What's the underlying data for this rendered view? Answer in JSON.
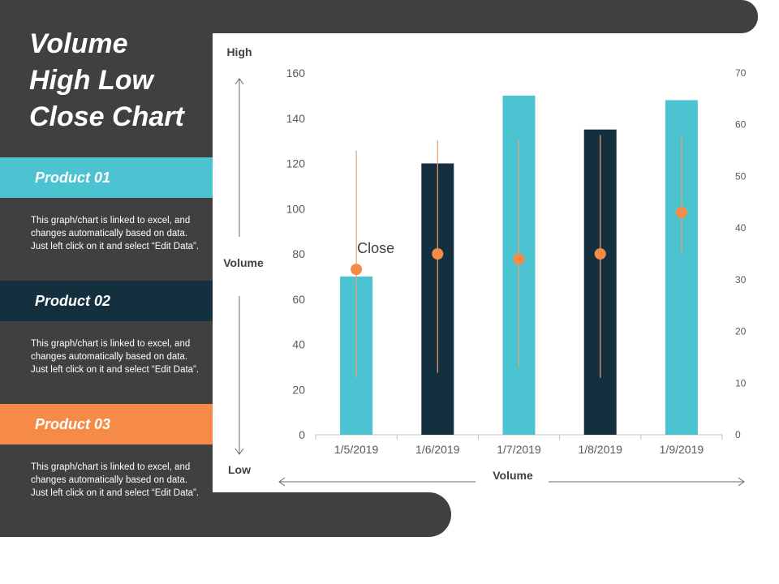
{
  "slide": {
    "title": "Volume\nHigh Low\nClose Chart",
    "products": [
      {
        "label": "Product 01",
        "color": "#4CC3D0",
        "description": "This graph/chart is linked to excel, and changes automatically based on data. Just left click on it and select “Edit Data”."
      },
      {
        "label": "Product 02",
        "color": "#14303F",
        "description": "This graph/chart is linked to excel, and changes automatically based on data. Just left click on it and select “Edit Data”."
      },
      {
        "label": "Product 03",
        "color": "#F58B47",
        "description": "This graph/chart is linked to excel, and changes automatically based on data. Just left click on it and select “Edit Data”."
      }
    ]
  },
  "chart_data": {
    "type": "bar",
    "categories": [
      "1/5/2019",
      "1/6/2019",
      "1/7/2019",
      "1/8/2019",
      "1/9/2019"
    ],
    "volume": [
      70,
      120,
      150,
      135,
      148
    ],
    "volume_colors": [
      "#4CC3D0",
      "#14303F",
      "#4CC3D0",
      "#14303F",
      "#4CC3D0"
    ],
    "high": [
      55,
      57,
      57,
      58,
      58
    ],
    "low": [
      11,
      12,
      13,
      11,
      35
    ],
    "close": [
      32,
      35,
      34,
      35,
      43
    ],
    "ylim_left": [
      0,
      160
    ],
    "yticks_left": [
      0,
      20,
      40,
      60,
      80,
      100,
      120,
      140,
      160
    ],
    "ylim_right": [
      0,
      70
    ],
    "yticks_right": [
      0,
      10,
      20,
      30,
      40,
      50,
      60,
      70
    ],
    "label_high": "High",
    "label_low": "Low",
    "label_volume_y": "Volume",
    "label_volume_x": "Volume",
    "annotation": "Close",
    "close_color": "#F58B47",
    "line_color": "#E8A070"
  }
}
